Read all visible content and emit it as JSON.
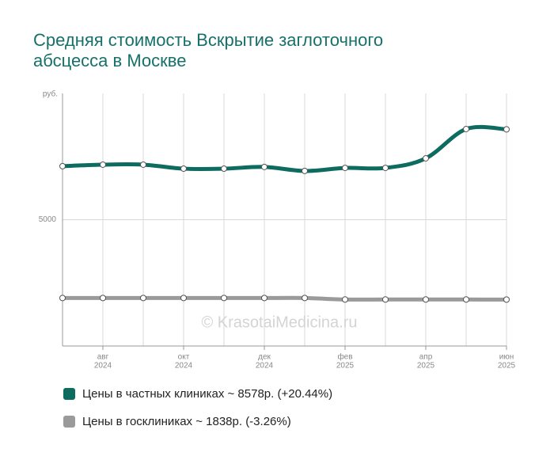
{
  "chart_data": {
    "type": "line",
    "title": "Средняя стоимость Вскрытие заглоточного абсцесса в Москве",
    "y_unit": "руб.",
    "watermark": "© KrasotaiMedicina.ru",
    "categories": [
      null,
      [
        "авг",
        "2024"
      ],
      null,
      [
        "окт",
        "2024"
      ],
      null,
      [
        "дек",
        "2024"
      ],
      null,
      [
        "фев",
        "2025"
      ],
      null,
      [
        "апр",
        "2025"
      ],
      null,
      [
        "июн",
        "2025"
      ]
    ],
    "series": [
      {
        "name": "Цены в частных клиниках ~ 8578р. (+20.44%)",
        "color": "#0d6b60",
        "values": [
          7120,
          7180,
          7180,
          7020,
          7020,
          7090,
          6930,
          7050,
          7050,
          7430,
          8590,
          8578
        ]
      },
      {
        "name": "Цены в госклиниках ~ 1838р. (-3.26%)",
        "color": "#9a9a9a",
        "values": [
          1900,
          1900,
          1900,
          1900,
          1900,
          1900,
          1900,
          1840,
          1840,
          1840,
          1840,
          1838
        ]
      }
    ],
    "ylim": [
      0,
      10000
    ],
    "yticks": [
      5000
    ],
    "grid": true
  }
}
